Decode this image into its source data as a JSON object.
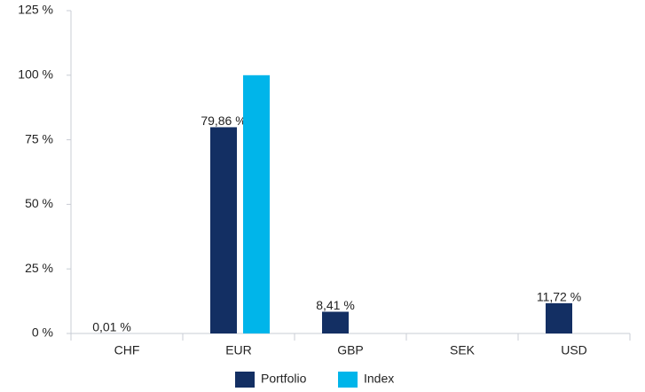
{
  "chart_data": {
    "type": "bar",
    "categories": [
      "CHF",
      "EUR",
      "GBP",
      "SEK",
      "USD"
    ],
    "series": [
      {
        "name": "Portfolio",
        "color": "#132f63",
        "values": [
          0.01,
          79.86,
          8.41,
          null,
          11.72
        ],
        "value_labels": [
          "0,01 %",
          "79,86 %",
          "8,41 %",
          null,
          "11,72 %"
        ]
      },
      {
        "name": "Index",
        "color": "#00b5ea",
        "values": [
          0,
          100,
          0,
          0,
          0
        ]
      }
    ],
    "ylim": [
      0,
      125
    ],
    "yticks": [
      {
        "value": 0,
        "label": "0 %"
      },
      {
        "value": 25,
        "label": "25 %"
      },
      {
        "value": 50,
        "label": "50 %"
      },
      {
        "value": 75,
        "label": "75 %"
      },
      {
        "value": 100,
        "label": "100 %"
      },
      {
        "value": 125,
        "label": "125 %"
      }
    ],
    "grid": false,
    "legend": "bottom"
  }
}
